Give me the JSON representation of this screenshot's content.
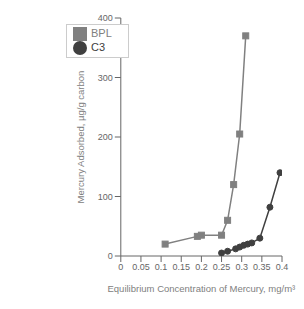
{
  "chart_data": {
    "type": "line",
    "xlabel": "Equilibrium Concentration of Mercury, mg/m³",
    "ylabel": "Mercury Adsorbed, µg/g carbon",
    "xlim": [
      0,
      0.4
    ],
    "ylim": [
      0,
      400
    ],
    "xticks": [
      0,
      0.05,
      0.1,
      0.15,
      0.2,
      0.25,
      0.3,
      0.35,
      0.4
    ],
    "yticks": [
      0,
      100,
      200,
      300,
      400
    ],
    "legend": "upper left",
    "grid": false,
    "series": [
      {
        "name": "C3",
        "color": "#404040",
        "marker": "circle",
        "x": [
          0.25,
          0.265,
          0.285,
          0.295,
          0.305,
          0.315,
          0.325,
          0.345,
          0.37,
          0.395
        ],
        "values": [
          5,
          8,
          12,
          15,
          18,
          20,
          22,
          30,
          82,
          140
        ]
      },
      {
        "name": "BPL",
        "color": "#808080",
        "marker": "square",
        "x": [
          0.11,
          0.19,
          0.2,
          0.25,
          0.265,
          0.28,
          0.295,
          0.31
        ],
        "values": [
          20,
          33,
          35,
          35,
          60,
          120,
          205,
          370
        ]
      }
    ]
  }
}
